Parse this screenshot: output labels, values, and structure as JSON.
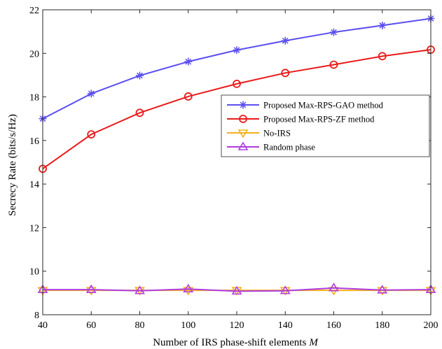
{
  "chart_data": {
    "type": "line",
    "title": "",
    "xlabel": "Number of IRS phase-shift elements",
    "xlabel_var": "M",
    "ylabel": "Secrecy Rate (bits/s/Hz)",
    "x": [
      40,
      60,
      80,
      100,
      120,
      140,
      160,
      180,
      200
    ],
    "xlim": [
      40,
      200
    ],
    "ylim": [
      8,
      22
    ],
    "xticks": [
      40,
      60,
      80,
      100,
      120,
      140,
      160,
      180,
      200
    ],
    "yticks": [
      8,
      10,
      12,
      14,
      16,
      18,
      20,
      22
    ],
    "grid": false,
    "legend_position": "right-center",
    "series": [
      {
        "name": "Proposed Max-RPS-GAO method",
        "color": "#5b4ef0",
        "marker": "asterisk",
        "values": [
          17.0,
          18.15,
          18.98,
          19.62,
          20.15,
          20.58,
          20.97,
          21.28,
          21.6
        ]
      },
      {
        "name": "Proposed Max-RPS-ZF method",
        "color": "#ea1a1a",
        "marker": "circle",
        "values": [
          14.7,
          16.28,
          17.27,
          18.02,
          18.6,
          19.1,
          19.48,
          19.87,
          20.17
        ]
      },
      {
        "name": "No-IRS",
        "color": "#f5b01c",
        "marker": "triangle-down",
        "values": [
          9.12,
          9.12,
          9.12,
          9.12,
          9.12,
          9.12,
          9.12,
          9.12,
          9.12
        ]
      },
      {
        "name": "Random phase",
        "color": "#b03ce0",
        "marker": "triangle-up",
        "values": [
          9.15,
          9.15,
          9.1,
          9.18,
          9.08,
          9.1,
          9.23,
          9.13,
          9.15
        ]
      }
    ]
  }
}
